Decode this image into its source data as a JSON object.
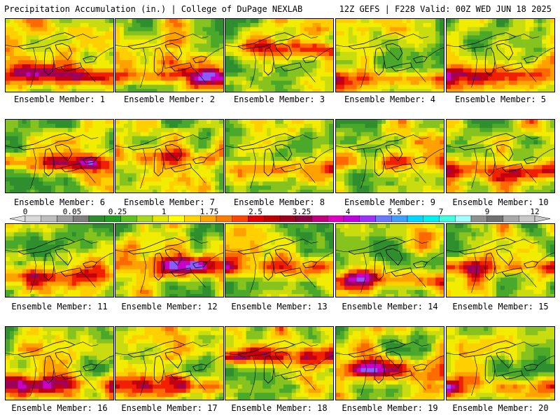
{
  "header": {
    "left_title": "Precipitation Accumulation (in.) | College of DuPage NEXLAB",
    "right_title": "12Z GEFS | F228 Valid: 00Z WED JUN 18 2025"
  },
  "panels": [
    {
      "label": "Ensemble Member: 1"
    },
    {
      "label": "Ensemble Member: 2"
    },
    {
      "label": "Ensemble Member: 3"
    },
    {
      "label": "Ensemble Member: 4"
    },
    {
      "label": "Ensemble Member: 5"
    },
    {
      "label": "Ensemble Member: 6"
    },
    {
      "label": "Ensemble Member: 7"
    },
    {
      "label": "Ensemble Member: 8"
    },
    {
      "label": "Ensemble Member: 9"
    },
    {
      "label": "Ensemble Member: 10"
    },
    {
      "label": "Ensemble Member: 11"
    },
    {
      "label": "Ensemble Member: 12"
    },
    {
      "label": "Ensemble Member: 13"
    },
    {
      "label": "Ensemble Member: 14"
    },
    {
      "label": "Ensemble Member: 15"
    },
    {
      "label": "Ensemble Member: 16"
    },
    {
      "label": "Ensemble Member: 17"
    },
    {
      "label": "Ensemble Member: 18"
    },
    {
      "label": "Ensemble Member: 19"
    },
    {
      "label": "Ensemble Member: 20"
    }
  ],
  "colorbar": {
    "labels": [
      "0",
      "0.05",
      "0.25",
      "1",
      "1.75",
      "2.5",
      "3.25",
      "4",
      "5.5",
      "7",
      "9",
      "12"
    ],
    "colors": [
      "#d9d9d9",
      "#bdbdbd",
      "#9e9e9e",
      "#7f7f7f",
      "#2e8b2e",
      "#1fa01f",
      "#5fc21f",
      "#a6d81e",
      "#e2e800",
      "#ffff00",
      "#ffd400",
      "#ffa500",
      "#ff7a00",
      "#ff4500",
      "#e00000",
      "#c00000",
      "#a00020",
      "#900040",
      "#c0007a",
      "#e000c0",
      "#c000e0",
      "#9b30ff",
      "#6a7aff",
      "#3fa0ff",
      "#00d8ff",
      "#00f0f0",
      "#40ffe0",
      "#a0ffff",
      "#909090",
      "#707070",
      "#a8a8a8",
      "#c8c8c8"
    ]
  }
}
